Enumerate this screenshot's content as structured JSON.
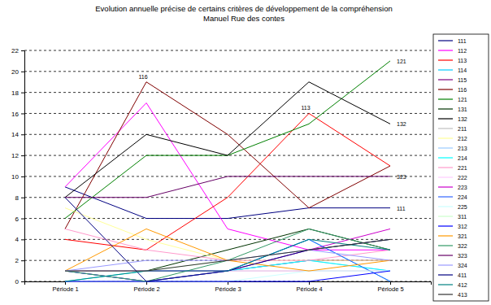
{
  "chart_data": {
    "type": "line",
    "title": "Evolution annuelle précise de certains critères de développement de la compréhension",
    "subtitle": "Manuel Rue des contes",
    "categories": [
      "Période 1",
      "Période 2",
      "Période 3",
      "Période 4",
      "Période 5"
    ],
    "ylim": [
      0,
      22
    ],
    "yticks": [
      0,
      2,
      4,
      6,
      8,
      10,
      12,
      14,
      16,
      18,
      20,
      22
    ],
    "grid": true,
    "legend": "right",
    "line_style": "solid",
    "series": [
      {
        "name": "111",
        "color": "#000080",
        "values": [
          9,
          6,
          6,
          7,
          7
        ]
      },
      {
        "name": "112",
        "color": "#FF00FF",
        "values": [
          9,
          17,
          5,
          3,
          3
        ]
      },
      {
        "name": "113",
        "color": "#FF0000",
        "values": [
          4,
          3,
          8,
          16,
          11
        ]
      },
      {
        "name": "114",
        "color": "#00CCFF",
        "values": [
          1,
          1,
          1,
          4,
          0
        ]
      },
      {
        "name": "115",
        "color": "#800080",
        "values": [
          1,
          0,
          1,
          2,
          2
        ]
      },
      {
        "name": "116",
        "color": "#800000",
        "values": [
          5,
          19,
          14,
          7,
          11
        ]
      },
      {
        "name": "121",
        "color": "#008000",
        "values": [
          6,
          12,
          12,
          15,
          21
        ]
      },
      {
        "name": "131",
        "color": "#003300",
        "values": [
          1,
          1,
          3,
          5,
          3
        ]
      },
      {
        "name": "132",
        "color": "#000000",
        "values": [
          8,
          14,
          12,
          19,
          15
        ]
      },
      {
        "name": "211",
        "color": "#C0C0C0",
        "values": [
          0,
          0,
          1,
          1,
          1
        ]
      },
      {
        "name": "212",
        "color": "#FFFF99",
        "values": [
          7,
          4,
          2,
          2,
          2
        ]
      },
      {
        "name": "213",
        "color": "#99CCFF",
        "values": [
          1,
          1,
          1,
          2,
          1
        ]
      },
      {
        "name": "214",
        "color": "#00FFFF",
        "values": [
          0,
          1,
          1,
          2,
          1
        ]
      },
      {
        "name": "221",
        "color": "#FF99CC",
        "values": [
          5,
          3,
          2,
          2,
          3
        ]
      },
      {
        "name": "222",
        "color": "#FFCCFF",
        "values": [
          1,
          1,
          1,
          1,
          1
        ]
      },
      {
        "name": "223",
        "color": "#CC00CC",
        "values": [
          1,
          1,
          1,
          3,
          5
        ]
      },
      {
        "name": "224",
        "color": "#3366FF",
        "values": [
          1,
          0,
          1,
          4,
          0
        ]
      },
      {
        "name": "225",
        "color": "#CCFFFF",
        "values": [
          0,
          0,
          0,
          1,
          1
        ]
      },
      {
        "name": "311",
        "color": "#CCFFCC",
        "values": [
          1,
          1,
          2,
          3,
          4
        ]
      },
      {
        "name": "312",
        "color": "#0000FF",
        "values": [
          0,
          0,
          0,
          0,
          1
        ]
      },
      {
        "name": "321",
        "color": "#FF9900",
        "values": [
          1,
          5,
          2,
          1,
          2
        ]
      },
      {
        "name": "322",
        "color": "#339966",
        "values": [
          1,
          0,
          2,
          5,
          3
        ]
      },
      {
        "name": "323",
        "color": "#660066",
        "values": [
          8,
          8,
          10,
          10,
          10
        ]
      },
      {
        "name": "324",
        "color": "#9999FF",
        "values": [
          1,
          2,
          2,
          3,
          2
        ]
      },
      {
        "name": "411",
        "color": "#000080",
        "values": [
          8,
          0,
          1,
          3,
          4
        ]
      },
      {
        "name": "412",
        "color": "#008080",
        "values": [
          0,
          1,
          1,
          4,
          3
        ]
      },
      {
        "name": "413",
        "color": "#333333",
        "values": [
          1,
          1,
          2,
          3,
          4
        ]
      }
    ],
    "annotations": [
      {
        "text": "116",
        "x": "Période 2",
        "y": 19
      },
      {
        "text": "113",
        "x": "Période 4",
        "y": 16
      },
      {
        "text": "121",
        "x": "Période 5",
        "y": 21
      },
      {
        "text": "132",
        "x": "Période 5",
        "y": 15
      },
      {
        "text": "323",
        "x": "Période 5",
        "y": 10
      },
      {
        "text": "111",
        "x": "Période 5",
        "y": 7
      }
    ]
  }
}
